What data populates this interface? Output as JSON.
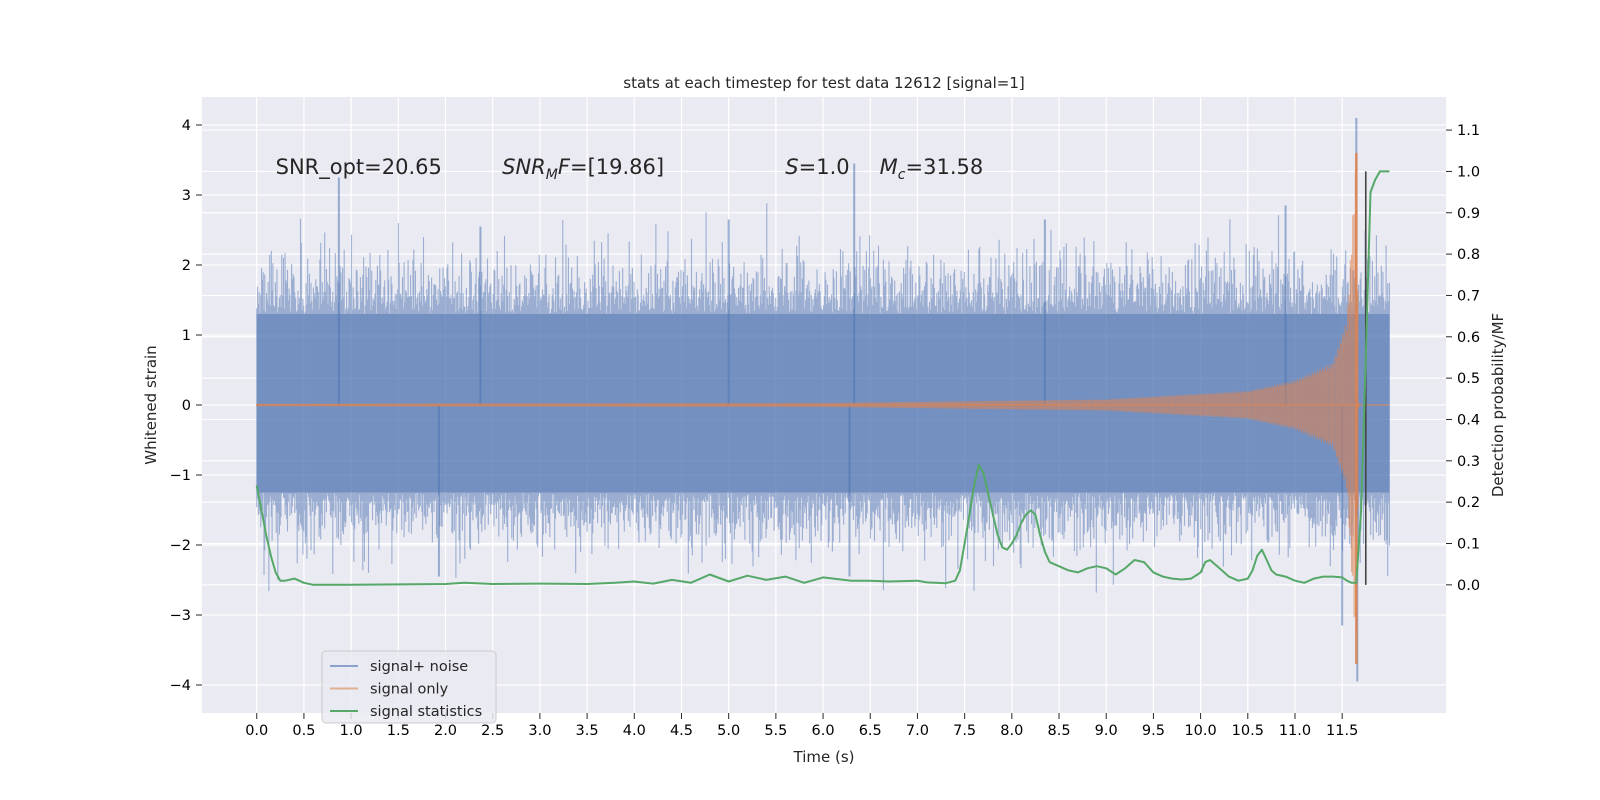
{
  "chart_data": {
    "type": "line",
    "title": "stats at each timestep for test data 12612 [signal=1]",
    "xlabel": "Time (s)",
    "ylabel": "Whitened strain",
    "ylabel_right": "Detection probability/MF",
    "xlim": [
      -0.58,
      12.6
    ],
    "ylim": [
      -4.4,
      4.4
    ],
    "ylim_right": [
      -0.31,
      1.18
    ],
    "x_ticks": [
      0.0,
      0.5,
      1.0,
      1.5,
      2.0,
      2.5,
      3.0,
      3.5,
      4.0,
      4.5,
      5.0,
      5.5,
      6.0,
      6.5,
      7.0,
      7.5,
      8.0,
      8.5,
      9.0,
      9.5,
      10.0,
      10.5,
      11.0,
      11.5
    ],
    "x_tick_labels": [
      "0.0",
      "0.5",
      "1.0",
      "1.5",
      "2.0",
      "2.5",
      "3.0",
      "3.5",
      "4.0",
      "4.5",
      "5.0",
      "5.5",
      "6.0",
      "6.5",
      "7.0",
      "7.5",
      "8.0",
      "8.5",
      "9.0",
      "9.5",
      "10.0",
      "10.5",
      "11.0",
      "11.5"
    ],
    "y_ticks": [
      -4,
      -3,
      -2,
      -1,
      0,
      1,
      2,
      3,
      4
    ],
    "y_tick_labels": [
      "−4",
      "−3",
      "−2",
      "−1",
      "0",
      "1",
      "2",
      "3",
      "4"
    ],
    "y_right_ticks": [
      0.0,
      0.1,
      0.2,
      0.3,
      0.4,
      0.5,
      0.6,
      0.7,
      0.8,
      0.9,
      1.0,
      1.1
    ],
    "y_right_tick_labels": [
      "0.0",
      "0.1",
      "0.2",
      "0.3",
      "0.4",
      "0.5",
      "0.6",
      "0.7",
      "0.8",
      "0.9",
      "1.0",
      "1.1"
    ],
    "grid": true,
    "legend_position": "bottom-left",
    "annotations": [
      {
        "text": "SNR_opt=20.65",
        "x": 0.2,
        "y": 3.3
      },
      {
        "text": "SNR_MF=[19.86]",
        "x": 2.6,
        "y": 3.3
      },
      {
        "text": "S=1.0",
        "x": 5.6,
        "y": 3.3
      },
      {
        "text": "M_c=31.58",
        "x": 6.6,
        "y": 3.3
      }
    ],
    "series": [
      {
        "name": "signal+ noise",
        "color": "#4c72b0",
        "opacity": 0.5,
        "axis": "left",
        "x_range": [
          0.0,
          12.0
        ],
        "envelope_typical": [
          -1.25,
          1.3
        ],
        "peaks": [
          {
            "x": 0.87,
            "y": 3.25
          },
          {
            "x": 1.93,
            "y": -2.45
          },
          {
            "x": 2.37,
            "y": 2.55
          },
          {
            "x": 5.0,
            "y": 2.65
          },
          {
            "x": 6.33,
            "y": 3.45
          },
          {
            "x": 6.28,
            "y": -2.45
          },
          {
            "x": 8.35,
            "y": 2.65
          },
          {
            "x": 10.9,
            "y": 2.85
          },
          {
            "x": 11.5,
            "y": -3.15
          },
          {
            "x": 11.65,
            "y": 4.1
          },
          {
            "x": 11.66,
            "y": -3.95
          }
        ]
      },
      {
        "name": "signal only",
        "color": "#dd8452",
        "opacity": 0.6,
        "axis": "left",
        "x_range": [
          0.0,
          12.0
        ],
        "description_values": [
          {
            "x": 0.0,
            "amp": 0.02
          },
          {
            "x": 6.0,
            "amp": 0.03
          },
          {
            "x": 9.0,
            "amp": 0.08
          },
          {
            "x": 10.5,
            "amp": 0.2
          },
          {
            "x": 11.0,
            "amp": 0.35
          },
          {
            "x": 11.4,
            "amp": 0.6
          },
          {
            "x": 11.55,
            "amp": 1.2
          },
          {
            "x": 11.65,
            "amp": 3.6
          },
          {
            "x": 11.68,
            "amp": 0.0
          }
        ]
      },
      {
        "name": "signal statistics",
        "color": "#55a868",
        "opacity": 1.0,
        "axis": "right",
        "x": [
          0.0,
          0.05,
          0.1,
          0.15,
          0.2,
          0.25,
          0.3,
          0.4,
          0.5,
          0.6,
          0.8,
          1.0,
          1.5,
          2.0,
          2.2,
          2.5,
          3.0,
          3.5,
          3.8,
          4.0,
          4.2,
          4.4,
          4.6,
          4.8,
          5.0,
          5.2,
          5.4,
          5.6,
          5.8,
          6.0,
          6.3,
          6.5,
          6.7,
          7.0,
          7.1,
          7.3,
          7.4,
          7.45,
          7.5,
          7.55,
          7.6,
          7.65,
          7.7,
          7.75,
          7.8,
          7.85,
          7.9,
          7.95,
          8.0,
          8.05,
          8.1,
          8.15,
          8.2,
          8.25,
          8.3,
          8.35,
          8.4,
          8.45,
          8.5,
          8.55,
          8.6,
          8.7,
          8.8,
          8.9,
          9.0,
          9.1,
          9.2,
          9.3,
          9.4,
          9.5,
          9.6,
          9.7,
          9.8,
          9.9,
          10.0,
          10.05,
          10.1,
          10.2,
          10.3,
          10.4,
          10.5,
          10.55,
          10.6,
          10.65,
          10.7,
          10.75,
          10.8,
          10.9,
          11.0,
          11.1,
          11.2,
          11.3,
          11.4,
          11.5,
          11.55,
          11.6,
          11.65,
          11.7,
          11.75,
          11.8,
          11.85,
          11.9,
          11.95,
          12.0
        ],
        "values": [
          0.24,
          0.18,
          0.12,
          0.07,
          0.03,
          0.01,
          0.01,
          0.015,
          0.005,
          0.0,
          0.0,
          0.0,
          0.001,
          0.002,
          0.005,
          0.002,
          0.003,
          0.002,
          0.005,
          0.008,
          0.003,
          0.012,
          0.005,
          0.025,
          0.008,
          0.022,
          0.012,
          0.02,
          0.005,
          0.018,
          0.01,
          0.01,
          0.008,
          0.01,
          0.006,
          0.004,
          0.01,
          0.035,
          0.1,
          0.17,
          0.24,
          0.29,
          0.27,
          0.22,
          0.17,
          0.12,
          0.09,
          0.085,
          0.1,
          0.12,
          0.15,
          0.17,
          0.18,
          0.17,
          0.12,
          0.08,
          0.055,
          0.05,
          0.045,
          0.04,
          0.035,
          0.03,
          0.04,
          0.045,
          0.04,
          0.025,
          0.04,
          0.06,
          0.055,
          0.03,
          0.02,
          0.015,
          0.013,
          0.015,
          0.03,
          0.055,
          0.06,
          0.04,
          0.02,
          0.01,
          0.015,
          0.035,
          0.07,
          0.085,
          0.06,
          0.035,
          0.025,
          0.02,
          0.01,
          0.005,
          0.015,
          0.02,
          0.02,
          0.018,
          0.01,
          0.005,
          0.005,
          0.18,
          0.55,
          0.95,
          0.98,
          1.0,
          1.0,
          1.0
        ]
      }
    ]
  }
}
